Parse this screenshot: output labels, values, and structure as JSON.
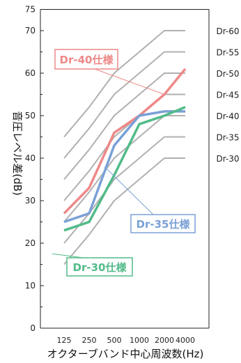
{
  "chart_data": {
    "type": "line",
    "ylabel": "音圧レベル差(dB)",
    "xlabel": "オクターブバンド中心周波数(Hz)",
    "categories": [
      "125",
      "250",
      "500",
      "1000",
      "2000",
      "4000"
    ],
    "ylim": [
      0,
      75
    ],
    "yticks": [
      0,
      10,
      20,
      30,
      40,
      50,
      60,
      70,
      75
    ],
    "reference_curves": [
      {
        "name": "Dr-60",
        "values": [
          45,
          52,
          60,
          65,
          70,
          70
        ]
      },
      {
        "name": "Dr-55",
        "values": [
          40,
          47,
          55,
          60,
          65,
          65
        ]
      },
      {
        "name": "Dr-50",
        "values": [
          35,
          42,
          50,
          55,
          60,
          60
        ]
      },
      {
        "name": "Dr-45",
        "values": [
          30,
          37,
          45,
          50,
          55,
          55
        ]
      },
      {
        "name": "Dr-40",
        "values": [
          25,
          32,
          40,
          45,
          50,
          50
        ]
      },
      {
        "name": "Dr-35",
        "values": [
          20,
          27,
          35,
          40,
          45,
          45
        ]
      },
      {
        "name": "Dr-30",
        "values": [
          15,
          22,
          30,
          35,
          40,
          40
        ]
      }
    ],
    "series": [
      {
        "name": "Dr-40仕様",
        "color": "#ee8888",
        "values": [
          27,
          33,
          46,
          50,
          55,
          61
        ]
      },
      {
        "name": "Dr-35仕様",
        "color": "#7aa0d6",
        "values": [
          25,
          27,
          43,
          50,
          51,
          51
        ]
      },
      {
        "name": "Dr-30仕様",
        "color": "#52bb88",
        "values": [
          23,
          25,
          36,
          48,
          50,
          52
        ]
      }
    ]
  }
}
